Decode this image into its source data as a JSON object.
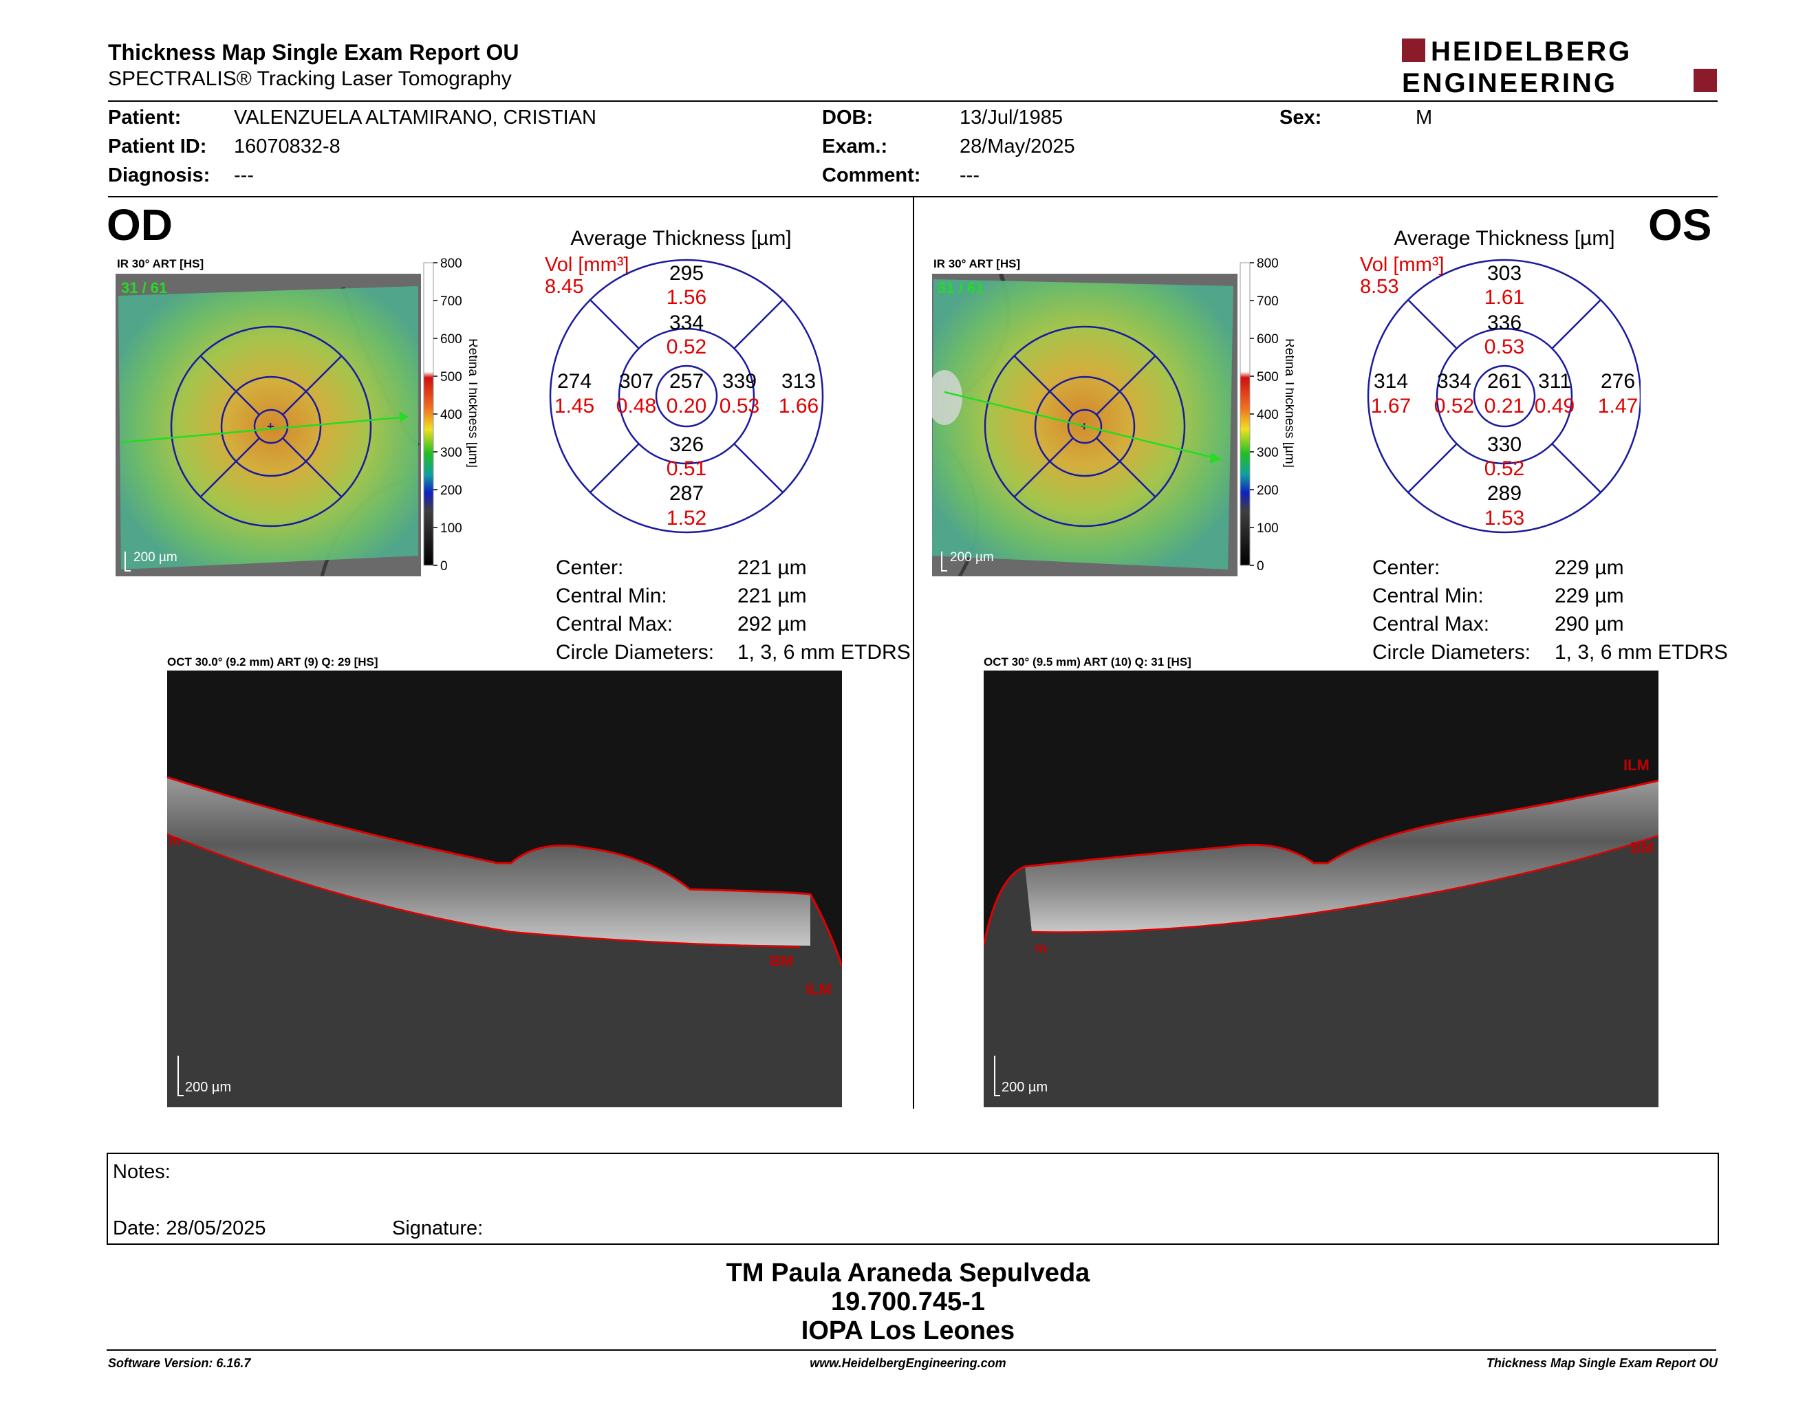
{
  "header": {
    "title": "Thickness Map Single Exam Report OU",
    "subtitle": "SPECTRALIS® Tracking Laser Tomography",
    "logo_line1": "HEIDELBERG",
    "logo_line2": "ENGINEERING",
    "logo_color": "#8b1a2b"
  },
  "patient": {
    "patient_label": "Patient:",
    "patient_value": "VALENZUELA ALTAMIRANO, CRISTIAN",
    "id_label": "Patient ID:",
    "id_value": "16070832-8",
    "diag_label": "Diagnosis:",
    "diag_value": "---",
    "dob_label": "DOB:",
    "dob_value": "13/Jul/1985",
    "exam_label": "Exam.:",
    "exam_value": "28/May/2025",
    "comment_label": "Comment:",
    "comment_value": "---",
    "sex_label": "Sex:",
    "sex_value": "M"
  },
  "od": {
    "eye": "OD",
    "ir_label": "IR 30° ART [HS]",
    "frame": "31 / 61",
    "scale": "200 µm",
    "colorbar_ticks": [
      "800",
      "700",
      "600",
      "500",
      "400",
      "300",
      "200",
      "100",
      "0"
    ],
    "colorbar_title": "Retina  Thickness [µm]",
    "avg_title": "Average Thickness [µm]",
    "vol_label": "Vol [mm³]",
    "vol_value": "8.45",
    "sectors": {
      "center_t": "257",
      "center_v": "0.20",
      "inner_sup_t": "334",
      "inner_sup_v": "0.52",
      "inner_inf_t": "326",
      "inner_inf_v": "0.51",
      "inner_left_t": "307",
      "inner_left_v": "0.48",
      "inner_right_t": "339",
      "inner_right_v": "0.53",
      "outer_sup_t": "295",
      "outer_sup_v": "1.56",
      "outer_inf_t": "287",
      "outer_inf_v": "1.52",
      "outer_left_t": "274",
      "outer_left_v": "1.45",
      "outer_right_t": "313",
      "outer_right_v": "1.66"
    },
    "stats": {
      "center_label": "Center:",
      "center_value": "221 µm",
      "min_label": "Central Min:",
      "min_value": "221 µm",
      "max_label": "Central Max:",
      "max_value": "292 µm",
      "diam_label": "Circle Diameters:",
      "diam_value": "1, 3, 6 mm ETDRS"
    },
    "oct_label": "OCT 30.0° (9.2 mm) ART (9) Q: 29 [HS]",
    "oct_scale": "200 µm",
    "layer_labels": {
      "ilm": "ILM",
      "bm": "BM",
      "m": "m"
    }
  },
  "os": {
    "eye": "OS",
    "ir_label": "IR 30° ART [HS]",
    "frame": "31 / 61",
    "scale": "200 µm",
    "colorbar_ticks": [
      "800",
      "700",
      "600",
      "500",
      "400",
      "300",
      "200",
      "100",
      "0"
    ],
    "colorbar_title": "Retina  Thickness [µm]",
    "avg_title": "Average Thickness [µm]",
    "vol_label": "Vol [mm³]",
    "vol_value": "8.53",
    "sectors": {
      "center_t": "261",
      "center_v": "0.21",
      "inner_sup_t": "336",
      "inner_sup_v": "0.53",
      "inner_inf_t": "330",
      "inner_inf_v": "0.52",
      "inner_left_t": "334",
      "inner_left_v": "0.52",
      "inner_right_t": "311",
      "inner_right_v": "0.49",
      "outer_sup_t": "303",
      "outer_sup_v": "1.61",
      "outer_inf_t": "289",
      "outer_inf_v": "1.53",
      "outer_left_t": "314",
      "outer_left_v": "1.67",
      "outer_right_t": "276",
      "outer_right_v": "1.47"
    },
    "stats": {
      "center_label": "Center:",
      "center_value": "229 µm",
      "min_label": "Central Min:",
      "min_value": "229 µm",
      "max_label": "Central Max:",
      "max_value": "290 µm",
      "diam_label": "Circle Diameters:",
      "diam_value": "1, 3, 6 mm ETDRS"
    },
    "oct_label": "OCT 30° (9.5 mm) ART (10) Q: 31 [HS]",
    "oct_scale": "200 µm",
    "layer_labels": {
      "ilm": "ILM",
      "bm": "BM",
      "m": "m"
    }
  },
  "notes": {
    "notes_label": "Notes:",
    "date_label": "Date: 28/05/2025",
    "signature_label": "Signature:"
  },
  "signer": {
    "name": "TM Paula Araneda Sepulveda",
    "id": "19.700.745-1",
    "org": "IOPA Los Leones"
  },
  "footer": {
    "software": "Software Version: 6.16.7",
    "website": "www.HeidelbergEngineering.com",
    "report": "Thickness Map Single Exam Report OU"
  },
  "colors": {
    "black_value": "#000000",
    "vol_value": "#e00000",
    "grid": "#1a1aa0",
    "segmentation": "#e00000"
  }
}
